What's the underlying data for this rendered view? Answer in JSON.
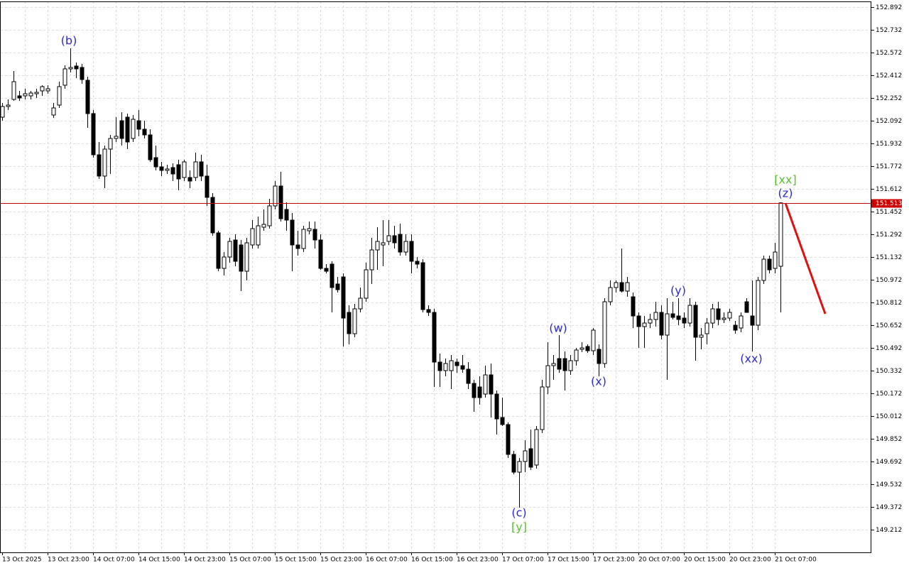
{
  "chart_data": {
    "type": "candlestick",
    "categories": [
      "13 Oct 2025",
      null,
      null,
      null,
      null,
      null,
      null,
      null,
      "13 Oct 23:00",
      null,
      null,
      null,
      null,
      null,
      null,
      null,
      "14 Oct 07:00",
      null,
      null,
      null,
      null,
      null,
      null,
      null,
      "14 Oct 15:00",
      null,
      null,
      null,
      null,
      null,
      null,
      null,
      "14 Oct 23:00",
      null,
      null,
      null,
      null,
      null,
      null,
      null,
      "15 Oct 07:00",
      null,
      null,
      null,
      null,
      null,
      null,
      null,
      "15 Oct 15:00",
      null,
      null,
      null,
      null,
      null,
      null,
      null,
      "15 Oct 23:00",
      null,
      null,
      null,
      null,
      null,
      null,
      null,
      "16 Oct 07:00",
      null,
      null,
      null,
      null,
      null,
      null,
      null,
      "16 Oct 15:00",
      null,
      null,
      null,
      null,
      null,
      null,
      null,
      "16 Oct 23:00",
      null,
      null,
      null,
      null,
      null,
      null,
      null,
      "17 Oct 07:00",
      null,
      null,
      null,
      null,
      null,
      null,
      null,
      "17 Oct 15:00",
      null,
      null,
      null,
      null,
      null,
      null,
      null,
      "17 Oct 23:00",
      null,
      null,
      null,
      null,
      null,
      null,
      null,
      "20 Oct 07:00",
      null,
      null,
      null,
      null,
      null,
      null,
      null,
      "20 Oct 15:00",
      null,
      null,
      null,
      null,
      null,
      null,
      null,
      "20 Oct 23:00",
      null,
      null,
      null,
      null,
      null,
      null,
      null,
      "21 Oct 07:00",
      null
    ],
    "open": [
      152.117,
      152.192,
      152.242,
      152.267,
      152.267,
      152.267,
      152.282,
      152.302,
      152.302,
      152.132,
      152.202,
      152.342,
      152.457,
      152.477,
      152.467,
      152.377,
      152.142,
      151.852,
      151.702,
      151.892,
      151.967,
      152.092,
      152.117,
      151.967,
      152.092,
      152.032,
      151.992,
      151.832,
      151.767,
      151.742,
      151.762,
      151.782,
      151.692,
      151.692,
      151.692,
      151.802,
      151.702,
      151.552,
      151.302,
      151.052,
      151.132,
      151.252,
      151.217,
      151.032,
      151.217,
      151.217,
      151.342,
      151.352,
      151.492,
      151.632,
      151.467,
      151.392,
      151.217,
      151.192,
      151.317,
      151.327,
      151.252,
      151.052,
      151.082,
      150.942,
      150.992,
      150.742,
      150.592,
      150.767,
      150.842,
      151.042,
      151.182,
      151.217,
      151.242,
      151.282,
      151.292,
      151.167,
      151.242,
      151.102,
      151.092,
      150.762,
      150.742,
      150.392,
      150.332,
      150.332,
      150.392,
      150.367,
      150.342,
      150.242,
      150.217,
      150.167,
      150.302,
      150.167,
      150.002,
      149.952,
      149.742,
      149.617,
      149.692,
      149.782,
      149.667,
      149.917,
      150.217,
      150.367,
      150.417,
      150.417,
      150.332,
      150.402,
      150.482,
      150.502,
      150.472,
      150.482,
      150.382,
      150.817,
      150.917,
      150.952,
      150.892,
      150.852,
      150.717,
      150.642,
      150.667,
      150.692,
      150.742,
      150.582,
      150.732,
      150.717,
      150.702,
      150.667,
      150.792,
      150.567,
      150.592,
      150.667,
      150.767,
      150.692,
      150.702,
      150.652,
      150.632,
      150.817,
      150.717,
      150.652,
      150.967,
      151.117,
      151.052,
      151.067
    ],
    "high": [
      152.217,
      152.242,
      152.442,
      152.302,
      152.317,
      152.302,
      152.317,
      152.342,
      152.342,
      152.217,
      152.367,
      152.482,
      152.602,
      152.502,
      152.492,
      152.402,
      152.167,
      151.942,
      151.917,
      151.992,
      152.117,
      152.152,
      152.142,
      152.132,
      152.167,
      152.092,
      152.032,
      151.917,
      151.802,
      151.782,
      151.792,
      151.817,
      151.817,
      151.742,
      151.867,
      151.852,
      151.782,
      151.582,
      151.317,
      151.167,
      151.267,
      151.292,
      151.252,
      151.267,
      151.392,
      151.417,
      151.467,
      151.542,
      151.667,
      151.732,
      151.517,
      151.442,
      151.317,
      151.352,
      151.382,
      151.382,
      151.292,
      151.082,
      151.102,
      150.992,
      151.017,
      150.792,
      150.802,
      150.917,
      151.092,
      151.267,
      151.342,
      151.392,
      151.392,
      151.352,
      151.367,
      151.292,
      151.292,
      151.132,
      151.117,
      150.792,
      150.767,
      150.452,
      150.417,
      150.442,
      150.417,
      150.442,
      150.392,
      150.267,
      150.292,
      150.367,
      150.382,
      150.192,
      150.142,
      149.967,
      149.767,
      149.717,
      149.842,
      149.917,
      149.942,
      150.267,
      150.532,
      150.442,
      150.582,
      150.467,
      150.442,
      150.492,
      150.532,
      150.517,
      150.632,
      150.517,
      150.842,
      150.967,
      150.967,
      151.192,
      150.992,
      150.882,
      150.742,
      150.717,
      150.732,
      150.817,
      150.792,
      150.842,
      150.817,
      150.842,
      150.742,
      150.842,
      150.817,
      150.632,
      150.702,
      150.802,
      150.817,
      150.742,
      150.767,
      150.682,
      150.742,
      150.842,
      150.967,
      150.992,
      151.142,
      151.142,
      151.232,
      151.517
    ],
    "low": [
      152.092,
      152.167,
      152.232,
      152.232,
      152.242,
      152.242,
      152.252,
      152.267,
      152.282,
      152.112,
      152.182,
      152.317,
      152.432,
      152.392,
      152.352,
      152.042,
      151.832,
      151.682,
      151.617,
      151.717,
      151.942,
      151.917,
      151.892,
      151.942,
      151.982,
      151.967,
      151.802,
      151.742,
      151.702,
      151.717,
      151.667,
      151.602,
      151.667,
      151.617,
      151.667,
      151.667,
      151.492,
      151.282,
      151.032,
      151.002,
      151.092,
      151.067,
      150.892,
      150.967,
      151.192,
      151.192,
      151.317,
      151.332,
      151.467,
      151.382,
      151.317,
      151.032,
      151.142,
      151.167,
      151.292,
      151.192,
      151.042,
      151.017,
      150.742,
      150.882,
      150.502,
      150.517,
      150.567,
      150.742,
      150.817,
      150.942,
      151.042,
      151.067,
      151.217,
      151.192,
      151.142,
      151.142,
      151.017,
      151.052,
      150.742,
      150.717,
      150.217,
      150.217,
      150.292,
      150.202,
      150.317,
      150.317,
      150.202,
      150.042,
      150.092,
      150.142,
      150.002,
      149.882,
      149.942,
      149.717,
      149.602,
      149.367,
      149.617,
      149.632,
      149.642,
      149.892,
      150.167,
      150.267,
      150.317,
      150.192,
      150.302,
      150.367,
      150.462,
      150.457,
      150.442,
      150.292,
      150.352,
      150.792,
      150.882,
      150.882,
      150.852,
      150.632,
      150.492,
      150.492,
      150.632,
      150.642,
      150.552,
      150.267,
      150.692,
      150.652,
      150.632,
      150.642,
      150.402,
      150.482,
      150.517,
      150.632,
      150.652,
      150.667,
      150.682,
      150.592,
      150.602,
      150.742,
      150.467,
      150.617,
      150.942,
      151.017,
      151.017,
      150.742
    ],
    "close": [
      152.192,
      152.202,
      152.367,
      152.252,
      152.282,
      152.287,
      152.292,
      152.332,
      152.317,
      152.182,
      152.332,
      152.457,
      152.467,
      152.457,
      152.382,
      152.142,
      151.852,
      151.702,
      151.892,
      151.967,
      151.982,
      151.967,
      151.942,
      152.102,
      152.032,
      151.992,
      151.817,
      151.767,
      151.742,
      151.752,
      151.717,
      151.682,
      151.802,
      151.667,
      151.802,
      151.702,
      151.552,
      151.302,
      151.052,
      151.132,
      151.242,
      151.102,
      151.032,
      151.232,
      151.332,
      151.352,
      151.362,
      151.492,
      151.632,
      151.402,
      151.392,
      151.217,
      151.192,
      151.327,
      151.332,
      151.252,
      151.052,
      151.032,
      150.917,
      150.902,
      150.702,
      150.592,
      150.767,
      150.842,
      151.042,
      151.182,
      151.242,
      151.232,
      151.282,
      151.232,
      151.167,
      151.242,
      151.102,
      151.082,
      150.762,
      150.742,
      150.392,
      150.332,
      150.382,
      150.402,
      150.367,
      150.342,
      150.242,
      150.142,
      150.142,
      150.302,
      150.167,
      149.992,
      149.952,
      149.742,
      149.617,
      149.692,
      149.767,
      149.652,
      149.917,
      150.217,
      150.367,
      150.382,
      150.342,
      150.332,
      150.402,
      150.477,
      150.492,
      150.472,
      150.617,
      150.382,
      150.817,
      150.917,
      150.952,
      150.892,
      150.952,
      150.717,
      150.642,
      150.667,
      150.692,
      150.742,
      150.582,
      150.732,
      150.707,
      150.692,
      150.667,
      150.792,
      150.567,
      150.582,
      150.667,
      150.767,
      150.692,
      150.702,
      150.742,
      150.617,
      150.717,
      150.742,
      150.652,
      150.967,
      151.117,
      151.042,
      151.167,
      151.513
    ],
    "up_color": "#ffffff",
    "down_color": "#000000",
    "outline_color": "#000000",
    "price_line": 151.513,
    "price_line_color": "#cc0000",
    "annotations": [
      {
        "text": "(b)",
        "color": "#2b2bd0"
      },
      {
        "text": "(c)",
        "color": "#2b2bd0"
      },
      {
        "text": "[y]",
        "color": "#5cc02e"
      },
      {
        "text": "(w)",
        "color": "#2b2bd0"
      },
      {
        "text": "(x)",
        "color": "#2b2bd0"
      },
      {
        "text": "(y)",
        "color": "#2b2bd0"
      },
      {
        "text": "(xx)",
        "color": "#2b2bd0"
      },
      {
        "text": "[xx]",
        "color": "#5cc02e"
      },
      {
        "text": "(z)",
        "color": "#2b2bd0"
      }
    ],
    "ylim": [
      149.052,
      152.932
    ],
    "yticks": [
      152.892,
      152.732,
      152.572,
      152.412,
      152.252,
      152.092,
      151.932,
      151.772,
      151.612,
      151.452,
      151.292,
      151.132,
      150.972,
      150.812,
      150.652,
      150.492,
      150.332,
      150.172,
      150.012,
      149.852,
      149.692,
      149.532,
      149.372,
      149.212
    ],
    "grid": true
  }
}
